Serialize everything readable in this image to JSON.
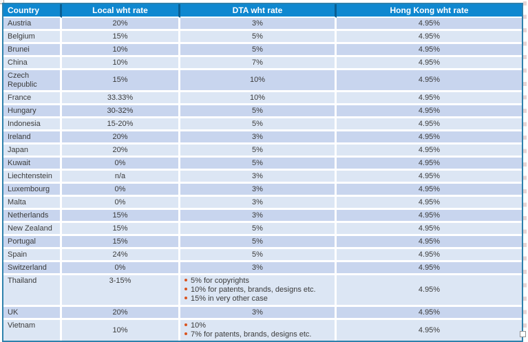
{
  "table": {
    "columns": [
      "Country",
      "Local wht rate",
      "DTA wht rate",
      "Hong Kong wht rate"
    ],
    "rows": [
      {
        "country": "Austria",
        "local": "20%",
        "dta": "3%",
        "hk": "4.95%"
      },
      {
        "country": "Belgium",
        "local": "15%",
        "dta": "5%",
        "hk": "4.95%"
      },
      {
        "country": "Brunei",
        "local": "10%",
        "dta": "5%",
        "hk": "4.95%"
      },
      {
        "country": "China",
        "local": "10%",
        "dta": "7%",
        "hk": "4.95%"
      },
      {
        "country": "Czech Republic",
        "local": "15%",
        "dta": "10%",
        "hk": "4.95%"
      },
      {
        "country": "France",
        "local": "33.33%",
        "dta": "10%",
        "hk": "4.95%"
      },
      {
        "country": "Hungary",
        "local": "30-32%",
        "dta": "5%",
        "hk": "4.95%"
      },
      {
        "country": "Indonesia",
        "local": "15-20%",
        "dta": "5%",
        "hk": "4.95%"
      },
      {
        "country": "Ireland",
        "local": "20%",
        "dta": "3%",
        "hk": "4.95%"
      },
      {
        "country": "Japan",
        "local": "20%",
        "dta": "5%",
        "hk": "4.95%"
      },
      {
        "country": "Kuwait",
        "local": "0%",
        "dta": "5%",
        "hk": "4.95%"
      },
      {
        "country": "Liechtenstein",
        "local": "n/a",
        "dta": "3%",
        "hk": "4.95%"
      },
      {
        "country": "Luxembourg",
        "local": "0%",
        "dta": "3%",
        "hk": "4.95%"
      },
      {
        "country": "Malta",
        "local": "0%",
        "dta": "3%",
        "hk": "4.95%"
      },
      {
        "country": "Netherlands",
        "local": "15%",
        "dta": "3%",
        "hk": "4.95%"
      },
      {
        "country": "New Zealand",
        "local": "15%",
        "dta": "5%",
        "hk": "4.95%"
      },
      {
        "country": "Portugal",
        "local": "15%",
        "dta": "5%",
        "hk": "4.95%"
      },
      {
        "country": "Spain",
        "local": "24%",
        "dta": "5%",
        "hk": "4.95%"
      },
      {
        "country": "Switzerland",
        "local": "0%",
        "dta": "3%",
        "hk": "4.95%"
      },
      {
        "country": "Thailand",
        "local": "3-15%",
        "local_top": true,
        "dta_bullets": [
          "5% for copyrights",
          "10% for patents, brands, designs etc.",
          "15% in very other case"
        ],
        "hk": "4.95%"
      },
      {
        "country": "UK",
        "local": "20%",
        "dta": "3%",
        "hk": "4.95%"
      },
      {
        "country": "Vietnam",
        "local": "10%",
        "dta_bullets": [
          "10%",
          "7% for patents, brands, designs etc."
        ],
        "hk": "4.95%"
      }
    ],
    "colors": {
      "header_bg": "#0F88D0",
      "header_divider": "#0A5F93",
      "row_dark": "#C8D5EE",
      "row_light": "#DCE6F4",
      "outer_border": "#2E81AC",
      "bullet": "#D9541E",
      "text": "#3A3A3A",
      "header_text": "#FFFFFF"
    }
  }
}
